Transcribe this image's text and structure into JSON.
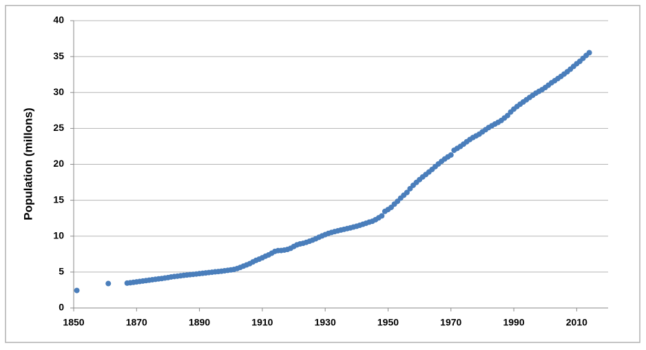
{
  "chart_data": {
    "type": "scatter",
    "y_label": "Population (millons)",
    "color": "#4a7ebb",
    "grid": true,
    "xlim": [
      1850,
      2020
    ],
    "xticks": [
      1850,
      1870,
      1890,
      1910,
      1930,
      1950,
      1970,
      1990,
      2010
    ],
    "ylim": [
      0,
      40
    ],
    "yticks": [
      0,
      5,
      10,
      15,
      20,
      25,
      30,
      35,
      40
    ],
    "x": [
      1851,
      1861,
      1867,
      1868,
      1869,
      1870,
      1871,
      1872,
      1873,
      1874,
      1875,
      1876,
      1877,
      1878,
      1879,
      1880,
      1881,
      1882,
      1883,
      1884,
      1885,
      1886,
      1887,
      1888,
      1889,
      1890,
      1891,
      1892,
      1893,
      1894,
      1895,
      1896,
      1897,
      1898,
      1899,
      1900,
      1901,
      1902,
      1903,
      1904,
      1905,
      1906,
      1907,
      1908,
      1909,
      1910,
      1911,
      1912,
      1913,
      1914,
      1915,
      1916,
      1917,
      1918,
      1919,
      1920,
      1921,
      1922,
      1923,
      1924,
      1925,
      1926,
      1927,
      1928,
      1929,
      1930,
      1931,
      1932,
      1933,
      1934,
      1935,
      1936,
      1937,
      1938,
      1939,
      1940,
      1941,
      1942,
      1943,
      1944,
      1945,
      1946,
      1947,
      1948,
      1949,
      1950,
      1951,
      1952,
      1953,
      1954,
      1955,
      1956,
      1957,
      1958,
      1959,
      1960,
      1961,
      1962,
      1963,
      1964,
      1965,
      1966,
      1967,
      1968,
      1969,
      1970,
      1971,
      1972,
      1973,
      1974,
      1975,
      1976,
      1977,
      1978,
      1979,
      1980,
      1981,
      1982,
      1983,
      1984,
      1985,
      1986,
      1987,
      1988,
      1989,
      1990,
      1991,
      1992,
      1993,
      1994,
      1995,
      1996,
      1997,
      1998,
      1999,
      2000,
      2001,
      2002,
      2003,
      2004,
      2005,
      2006,
      2007,
      2008,
      2009,
      2010,
      2011,
      2012,
      2013,
      2014
    ],
    "values": [
      2.44,
      3.4,
      3.46,
      3.51,
      3.57,
      3.63,
      3.69,
      3.75,
      3.81,
      3.87,
      3.93,
      3.99,
      4.05,
      4.1,
      4.17,
      4.23,
      4.32,
      4.38,
      4.43,
      4.48,
      4.54,
      4.59,
      4.64,
      4.68,
      4.73,
      4.78,
      4.83,
      4.88,
      4.93,
      4.98,
      5.03,
      5.07,
      5.12,
      5.18,
      5.24,
      5.3,
      5.37,
      5.49,
      5.65,
      5.83,
      6.0,
      6.17,
      6.41,
      6.63,
      6.8,
      6.99,
      7.21,
      7.39,
      7.63,
      7.88,
      7.98,
      8.0,
      8.06,
      8.15,
      8.31,
      8.56,
      8.79,
      8.92,
      9.01,
      9.14,
      9.29,
      9.45,
      9.64,
      9.84,
      10.03,
      10.21,
      10.38,
      10.51,
      10.63,
      10.74,
      10.85,
      10.95,
      11.05,
      11.15,
      11.27,
      11.38,
      11.51,
      11.65,
      11.8,
      11.95,
      12.07,
      12.29,
      12.55,
      12.82,
      13.45,
      13.71,
      14.01,
      14.46,
      14.85,
      15.29,
      15.7,
      16.08,
      16.61,
      17.08,
      17.48,
      17.87,
      18.24,
      18.58,
      18.93,
      19.29,
      19.68,
      20.05,
      20.41,
      20.74,
      21.03,
      21.3,
      21.96,
      22.22,
      22.49,
      22.81,
      23.14,
      23.45,
      23.73,
      23.96,
      24.2,
      24.52,
      24.82,
      25.12,
      25.37,
      25.61,
      25.84,
      26.1,
      26.45,
      26.79,
      27.28,
      27.69,
      28.04,
      28.37,
      28.68,
      28.99,
      29.3,
      29.61,
      29.91,
      30.16,
      30.4,
      30.69,
      31.02,
      31.36,
      31.64,
      31.94,
      32.24,
      32.57,
      32.89,
      33.25,
      33.63,
      34.01,
      34.34,
      34.75,
      35.15,
      35.54
    ]
  }
}
